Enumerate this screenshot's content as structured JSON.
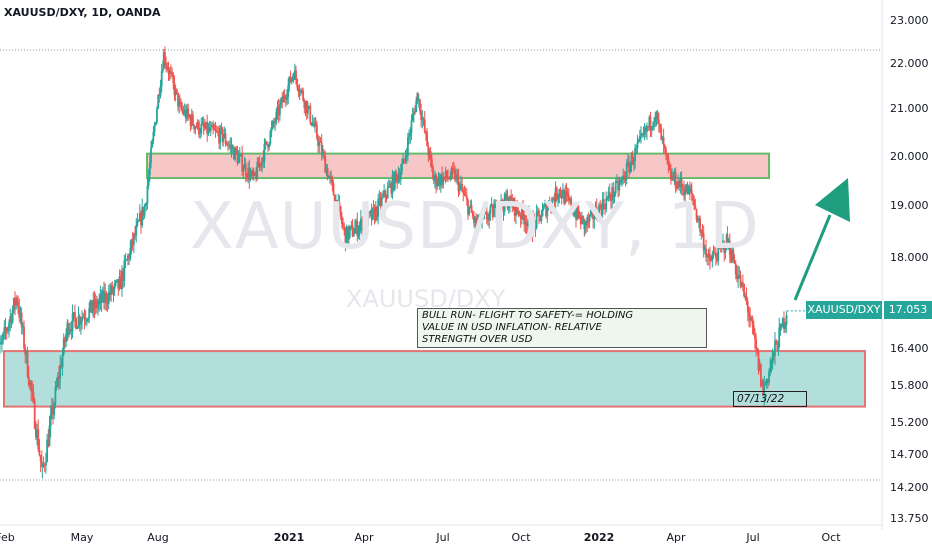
{
  "header": {
    "symbol_title": "XAUUSD/DXY, 1D, OANDA"
  },
  "watermark": {
    "main": "XAUUSD/DXY, 1D",
    "sub": "XAUUSD/DXY"
  },
  "annotation": {
    "note_lines": [
      "BULL RUN- FLIGHT TO  SAFETY-= HOLDING",
      "VALUE IN USD INFLATION- RELATIVE",
      "STRENGTH OVER USD"
    ],
    "date_label": "07/13/22"
  },
  "price_tag": {
    "symbol": "XAUUSD/DXY",
    "value": "17.053"
  },
  "colors": {
    "up": "#26a69a",
    "down": "#ef5350",
    "zone_top_fill": "#f7c6c6",
    "zone_top_border": "#66bb6a",
    "zone_bottom_fill": "#b2dfdb",
    "zone_bottom_border": "#e57373",
    "arrow": "#1e9e7e"
  },
  "chart_data": {
    "type": "candlestick",
    "y_ticks": [
      "23.000",
      "22.000",
      "21.000",
      "20.000",
      "19.000",
      "18.000",
      "16.400",
      "15.800",
      "15.200",
      "14.700",
      "14.200",
      "13.750"
    ],
    "x_ticks": [
      {
        "label": "Feb",
        "bold": false
      },
      {
        "label": "May",
        "bold": false
      },
      {
        "label": "Aug",
        "bold": false
      },
      {
        "label": "2021",
        "bold": true
      },
      {
        "label": "Apr",
        "bold": false
      },
      {
        "label": "Jul",
        "bold": false
      },
      {
        "label": "Oct",
        "bold": false
      },
      {
        "label": "2022",
        "bold": true
      },
      {
        "label": "Apr",
        "bold": false
      },
      {
        "label": "Jul",
        "bold": false
      },
      {
        "label": "Oct",
        "bold": false
      }
    ],
    "zones": [
      {
        "name": "resistance",
        "from": 19.55,
        "to": 20.05
      },
      {
        "name": "support",
        "from": 15.45,
        "to": 16.35
      }
    ],
    "series": [
      {
        "date": "2020-01-20",
        "value": 16.1
      },
      {
        "date": "2020-02-15",
        "value": 17.3
      },
      {
        "date": "2020-03-16",
        "value": 14.4
      },
      {
        "date": "2020-04-15",
        "value": 16.8
      },
      {
        "date": "2020-05-15",
        "value": 17.1
      },
      {
        "date": "2020-06-15",
        "value": 17.5
      },
      {
        "date": "2020-07-15",
        "value": 19.0
      },
      {
        "date": "2020-08-06",
        "value": 22.2
      },
      {
        "date": "2020-08-25",
        "value": 21.0
      },
      {
        "date": "2020-09-15",
        "value": 20.6
      },
      {
        "date": "2020-10-15",
        "value": 20.4
      },
      {
        "date": "2020-11-20",
        "value": 19.5
      },
      {
        "date": "2021-01-06",
        "value": 21.8
      },
      {
        "date": "2021-02-01",
        "value": 20.5
      },
      {
        "date": "2021-03-08",
        "value": 18.4
      },
      {
        "date": "2021-04-10",
        "value": 18.8
      },
      {
        "date": "2021-05-15",
        "value": 19.8
      },
      {
        "date": "2021-06-01",
        "value": 21.3
      },
      {
        "date": "2021-06-20",
        "value": 19.5
      },
      {
        "date": "2021-07-15",
        "value": 19.6
      },
      {
        "date": "2021-08-09",
        "value": 18.6
      },
      {
        "date": "2021-09-15",
        "value": 19.1
      },
      {
        "date": "2021-10-15",
        "value": 18.6
      },
      {
        "date": "2021-11-15",
        "value": 19.3
      },
      {
        "date": "2021-12-15",
        "value": 18.6
      },
      {
        "date": "2022-01-25",
        "value": 19.4
      },
      {
        "date": "2022-03-08",
        "value": 20.9
      },
      {
        "date": "2022-03-25",
        "value": 19.6
      },
      {
        "date": "2022-04-20",
        "value": 19.2
      },
      {
        "date": "2022-05-10",
        "value": 17.9
      },
      {
        "date": "2022-06-01",
        "value": 18.3
      },
      {
        "date": "2022-06-25",
        "value": 17.1
      },
      {
        "date": "2022-07-13",
        "value": 15.7
      },
      {
        "date": "2022-08-01",
        "value": 16.6
      },
      {
        "date": "2022-08-10",
        "value": 17.053
      }
    ]
  }
}
